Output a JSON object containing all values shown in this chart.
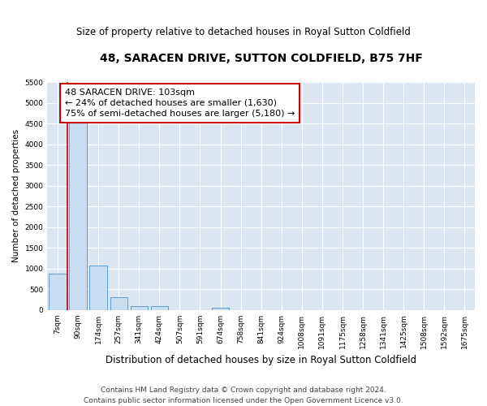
{
  "title": "48, SARACEN DRIVE, SUTTON COLDFIELD, B75 7HF",
  "subtitle": "Size of property relative to detached houses in Royal Sutton Coldfield",
  "xlabel": "Distribution of detached houses by size in Royal Sutton Coldfield",
  "ylabel": "Number of detached properties",
  "categories": [
    "7sqm",
    "90sqm",
    "174sqm",
    "257sqm",
    "341sqm",
    "424sqm",
    "507sqm",
    "591sqm",
    "674sqm",
    "758sqm",
    "841sqm",
    "924sqm",
    "1008sqm",
    "1091sqm",
    "1175sqm",
    "1258sqm",
    "1341sqm",
    "1425sqm",
    "1508sqm",
    "1592sqm",
    "1675sqm"
  ],
  "values": [
    880,
    4600,
    1080,
    300,
    100,
    100,
    0,
    0,
    50,
    0,
    0,
    0,
    0,
    0,
    0,
    0,
    0,
    0,
    0,
    0,
    0
  ],
  "bar_color": "#c9ddf0",
  "bar_edge_color": "#5b9bd5",
  "property_line_x": 0.5,
  "annotation_line1": "48 SARACEN DRIVE: 103sqm",
  "annotation_line2": "← 24% of detached houses are smaller (1,630)",
  "annotation_line3": "75% of semi-detached houses are larger (5,180) →",
  "annotation_box_color": "#ffffff",
  "annotation_box_edge_color": "#cc0000",
  "line_color": "#cc0000",
  "ylim": [
    0,
    5500
  ],
  "yticks": [
    0,
    500,
    1000,
    1500,
    2000,
    2500,
    3000,
    3500,
    4000,
    4500,
    5000,
    5500
  ],
  "background_color": "#dce6f1",
  "footer": "Contains HM Land Registry data © Crown copyright and database right 2024.\nContains public sector information licensed under the Open Government Licence v3.0.",
  "title_fontsize": 10,
  "subtitle_fontsize": 8.5,
  "xlabel_fontsize": 8.5,
  "ylabel_fontsize": 7.5,
  "tick_fontsize": 6.5,
  "annotation_fontsize": 8,
  "footer_fontsize": 6.5
}
